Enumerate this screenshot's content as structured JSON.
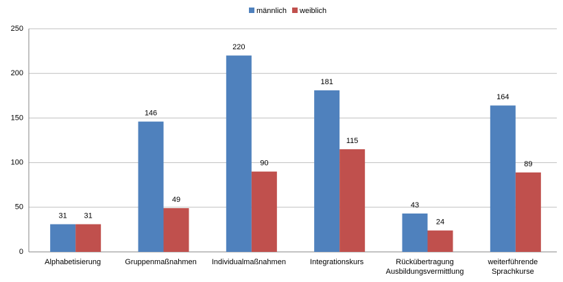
{
  "chart_data": {
    "type": "bar",
    "categories": [
      "Alphabetisierung",
      "Gruppenmaßnahmen",
      "Individualmaßnahmen",
      "Integrationskurs",
      "Rückübertragung\nAusbildungsvermittlung",
      "weiterführende\nSprachkurse"
    ],
    "series": [
      {
        "name": "männlich",
        "color": "#4f81bd",
        "values": [
          31,
          146,
          220,
          181,
          43,
          164
        ]
      },
      {
        "name": "weiblich",
        "color": "#c0504d",
        "values": [
          31,
          49,
          90,
          115,
          24,
          89
        ]
      }
    ],
    "ylim": [
      0,
      250
    ],
    "yticks": [
      0,
      50,
      100,
      150,
      200,
      250
    ],
    "grid": true,
    "legend": "top"
  }
}
